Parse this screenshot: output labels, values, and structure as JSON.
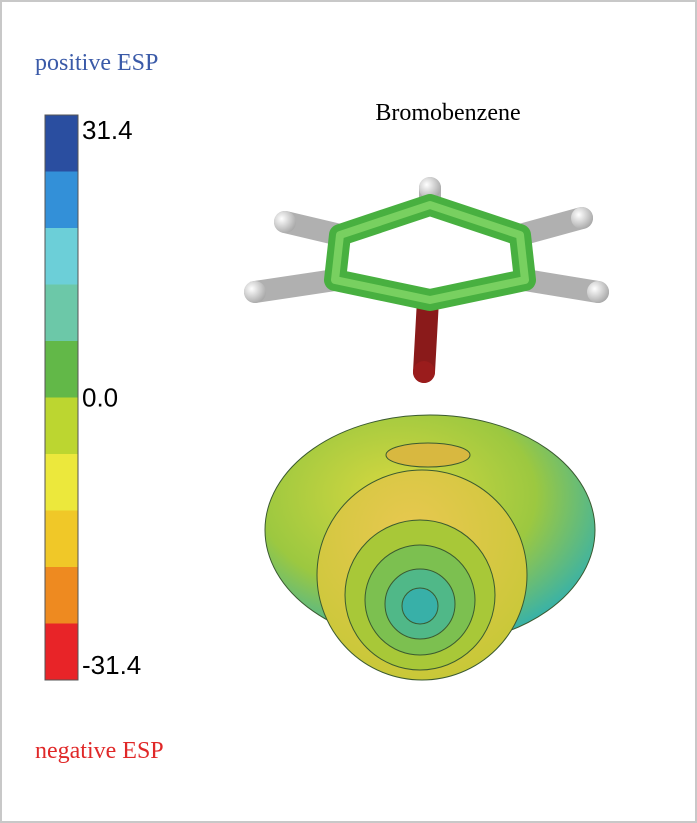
{
  "labels": {
    "positive": "positive ESP",
    "negative": "negative ESP"
  },
  "molecule": {
    "name": "Bromobenzene"
  },
  "colorbar": {
    "range": [
      -31.4,
      31.4
    ],
    "ticks": [
      {
        "value": 31.4,
        "label": "31.4"
      },
      {
        "value": 0,
        "label": "0.0"
      },
      {
        "value": -31.4,
        "label": "-31.4"
      }
    ],
    "colors": [
      "#2a4ea0",
      "#3390d8",
      "#6ccfd8",
      "#6cc8a8",
      "#62b848",
      "#bcd630",
      "#ece83c",
      "#f0c828",
      "#ee8a20",
      "#e82428"
    ]
  }
}
